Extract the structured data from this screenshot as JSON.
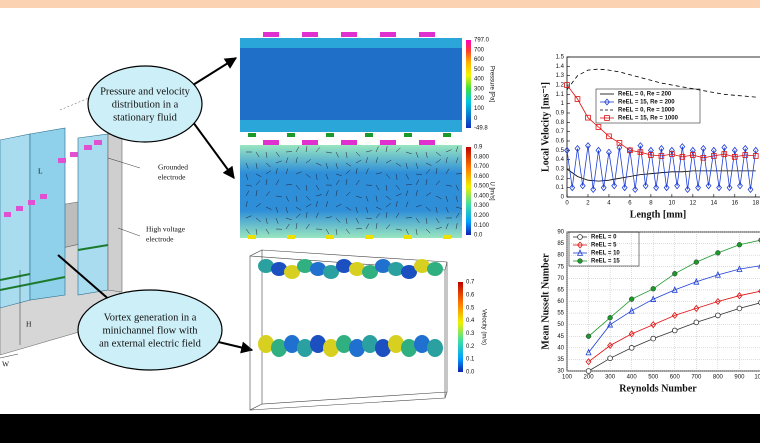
{
  "diagram": {
    "callouts": [
      [
        "Pressure and velocity",
        "distribution in a",
        "stationary fluid"
      ],
      [
        "Vortex generation in a",
        "minichannel flow with",
        "an external electric field"
      ]
    ],
    "labels": {
      "grounded": [
        "Grounded",
        "electrode"
      ],
      "high_voltage": [
        "High voltage",
        "electrode"
      ],
      "L": "L",
      "H": "H",
      "W": "W"
    },
    "pressure_colorbar": {
      "label": "Pressure [Pa]",
      "ticks": [
        "797.0",
        "700",
        "600",
        "500",
        "400",
        "300",
        "200",
        "100",
        "0",
        "-49.8"
      ]
    },
    "velocity_colorbar": {
      "label": "U [m/s]",
      "ticks": [
        "0.9",
        "0.800",
        "0.700",
        "0.600",
        "0.500",
        "0.400",
        "0.300",
        "0.200",
        "0.100",
        "0.0"
      ]
    },
    "velocity3d_colorbar": {
      "label": "Velocity (m/s)",
      "ticks": [
        "0.7",
        "0.6",
        "0.5",
        "0.4",
        "0.3",
        "0.2",
        "0.1",
        "0.0"
      ]
    }
  },
  "chart_data": [
    {
      "type": "line",
      "x_label": "Length [mm]",
      "y_label": "Local Velocity  [ms⁻¹]",
      "xlim": [
        0,
        18.5
      ],
      "ylim": [
        0,
        1.5
      ],
      "xticks": [
        0,
        2,
        4,
        6,
        8,
        10,
        12,
        14,
        16,
        18
      ],
      "yticks": [
        0,
        0.1,
        0.2,
        0.3,
        0.4,
        0.5,
        0.6,
        0.7,
        0.8,
        0.9,
        1,
        1.1,
        1.2,
        1.3,
        1.4,
        1.5
      ],
      "grid": false,
      "series": [
        {
          "name": "ReEL = 0, Re = 200",
          "color": "#000000",
          "line_style": "solid",
          "marker": "none",
          "x": [
            0,
            1,
            2,
            3,
            4,
            5,
            6,
            7,
            8,
            9,
            10,
            11,
            12,
            13,
            14,
            15,
            16,
            17,
            18
          ],
          "values": [
            0.3,
            0.22,
            0.18,
            0.17,
            0.18,
            0.2,
            0.22,
            0.24,
            0.25,
            0.26,
            0.27,
            0.27,
            0.28,
            0.28,
            0.28,
            0.28,
            0.28,
            0.28,
            0.28
          ]
        },
        {
          "name": "ReEL = 15, Re = 200",
          "color": "#1f3fd6",
          "line_style": "solid",
          "marker": "diamond",
          "x": [
            0,
            0.5,
            1,
            1.5,
            2,
            2.5,
            3,
            3.5,
            4,
            4.5,
            5,
            5.5,
            6,
            6.5,
            7,
            7.5,
            8,
            8.5,
            9,
            9.5,
            10,
            10.5,
            11,
            11.5,
            12,
            12.5,
            13,
            13.5,
            14,
            14.5,
            15,
            15.5,
            16,
            16.5,
            17,
            17.5,
            18
          ],
          "values": [
            0.5,
            0.1,
            0.52,
            0.12,
            0.55,
            0.08,
            0.5,
            0.1,
            0.48,
            0.12,
            0.53,
            0.1,
            0.5,
            0.08,
            0.55,
            0.12,
            0.5,
            0.1,
            0.52,
            0.1,
            0.5,
            0.12,
            0.54,
            0.08,
            0.5,
            0.1,
            0.52,
            0.12,
            0.5,
            0.1,
            0.53,
            0.1,
            0.5,
            0.12,
            0.52,
            0.08,
            0.5
          ]
        },
        {
          "name": "ReEL = 0, Re = 1000",
          "color": "#000000",
          "line_style": "dashed",
          "marker": "none",
          "x": [
            0,
            1,
            2,
            3,
            4,
            5,
            6,
            7,
            8,
            9,
            10,
            11,
            12,
            13,
            14,
            15,
            16,
            17,
            18
          ],
          "values": [
            1.15,
            1.3,
            1.36,
            1.37,
            1.36,
            1.34,
            1.31,
            1.28,
            1.25,
            1.22,
            1.2,
            1.18,
            1.16,
            1.14,
            1.12,
            1.1,
            1.09,
            1.08,
            1.07
          ]
        },
        {
          "name": "ReEL = 15, Re = 1000",
          "color": "#e01010",
          "line_style": "solid",
          "marker": "square",
          "x": [
            0,
            1,
            2,
            3,
            4,
            5,
            6,
            7,
            8,
            9,
            10,
            11,
            12,
            13,
            14,
            15,
            16,
            17,
            18
          ],
          "values": [
            1.2,
            1.05,
            0.85,
            0.75,
            0.65,
            0.58,
            0.5,
            0.48,
            0.45,
            0.44,
            0.46,
            0.43,
            0.45,
            0.42,
            0.44,
            0.46,
            0.43,
            0.45,
            0.44
          ]
        }
      ]
    },
    {
      "type": "line",
      "x_label": "Reynolds Number",
      "y_label": "Mean Nusselt Number",
      "xlim": [
        100,
        1000
      ],
      "ylim": [
        30,
        90
      ],
      "xticks": [
        100,
        200,
        300,
        400,
        500,
        600,
        700,
        800,
        900,
        1000
      ],
      "yticks": [
        30,
        35,
        40,
        45,
        50,
        55,
        60,
        65,
        70,
        75,
        80,
        85,
        90
      ],
      "grid": true,
      "series": [
        {
          "name": "ReEL = 0",
          "color": "#333333",
          "line_style": "solid",
          "marker": "circle",
          "x": [
            200,
            300,
            400,
            500,
            600,
            700,
            800,
            900,
            1000
          ],
          "values": [
            30,
            35.5,
            40,
            44,
            47.5,
            51,
            54,
            57,
            59.5
          ]
        },
        {
          "name": "ReEL = 5",
          "color": "#e01010",
          "line_style": "solid",
          "marker": "diamond",
          "x": [
            200,
            300,
            400,
            500,
            600,
            700,
            800,
            900,
            1000
          ],
          "values": [
            34,
            41,
            46,
            50,
            54,
            57,
            60,
            62.5,
            64.5
          ]
        },
        {
          "name": "ReEL = 10",
          "color": "#1f3fd6",
          "line_style": "solid",
          "marker": "triangle",
          "x": [
            200,
            300,
            400,
            500,
            600,
            700,
            800,
            900,
            1000
          ],
          "values": [
            38,
            50,
            56,
            61,
            65,
            68.5,
            71.5,
            74,
            75.5
          ]
        },
        {
          "name": "ReEL = 15",
          "color": "#1a9a2a",
          "line_style": "solid",
          "marker": "filled-circle",
          "x": [
            200,
            300,
            400,
            500,
            600,
            700,
            800,
            900,
            1000
          ],
          "values": [
            45,
            53,
            61,
            65.5,
            72,
            77,
            81,
            84.5,
            86.5
          ]
        }
      ]
    }
  ]
}
